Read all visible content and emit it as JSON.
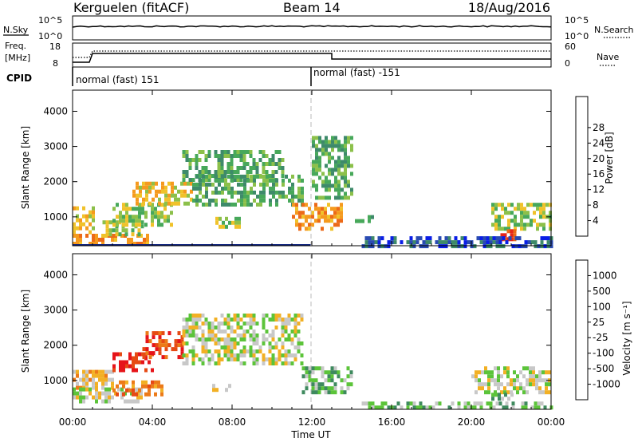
{
  "header": {
    "station": "Kerguelen (fitACF)",
    "beam": "Beam 14",
    "date": "18/Aug/2016"
  },
  "nsky_panel": {
    "left_label": "N.Sky",
    "right_label": "N.Search",
    "ticks": [
      "10^5",
      "10^0"
    ],
    "right_ticks": [
      "10^5",
      "10^0"
    ]
  },
  "freq_panel": {
    "left_label_line1": "Freq.",
    "left_label_line2": "[MHz]",
    "left_ticks": [
      "18",
      "8"
    ],
    "right_label": "Nave",
    "right_ticks": [
      "60",
      "0"
    ]
  },
  "cpid": {
    "label": "CPID",
    "segments": [
      {
        "start_hour": 0,
        "end_hour": 12,
        "text": "normal (fast) 151"
      },
      {
        "start_hour": 12,
        "end_hour": 24,
        "text": "normal (fast) -151"
      }
    ]
  },
  "x_axis": {
    "label": "Time UT",
    "range_hours": [
      0,
      24
    ],
    "ticks": [
      {
        "hour": 0,
        "text": "00:00"
      },
      {
        "hour": 4,
        "text": "04:00"
      },
      {
        "hour": 8,
        "text": "08:00"
      },
      {
        "hour": 12,
        "text": "12:00"
      },
      {
        "hour": 16,
        "text": "16:00"
      },
      {
        "hour": 20,
        "text": "20:00"
      },
      {
        "hour": 24,
        "text": "00:00"
      }
    ]
  },
  "chart_data": [
    {
      "type": "heatmap",
      "title": "",
      "ylabel": "Slant Range [km]",
      "ylim": [
        180,
        4600
      ],
      "yticks": [
        1000,
        2000,
        3000,
        4000
      ],
      "colorbar": {
        "label": "Power [dB]",
        "range": [
          0,
          30
        ],
        "ticks": [
          "4",
          "8",
          "12",
          "16",
          "20",
          "24",
          "28"
        ],
        "colors": [
          "#0a1ee6",
          "#2a4bb2",
          "#3e8a6a",
          "#47a85a",
          "#8cc04a",
          "#f0c22a",
          "#f59a1e",
          "#ec6a18",
          "#e6261a"
        ]
      },
      "regions": [
        {
          "t0": 0.0,
          "t1": 1.0,
          "r0": 600,
          "r1": 1300,
          "level": 5
        },
        {
          "t0": 0.0,
          "t1": 4.0,
          "r0": 280,
          "r1": 520,
          "level": 6
        },
        {
          "t0": 1.5,
          "t1": 3.5,
          "r0": 500,
          "r1": 900,
          "level": 4
        },
        {
          "t0": 2.0,
          "t1": 5.0,
          "r0": 800,
          "r1": 1400,
          "level": 4
        },
        {
          "t0": 3.0,
          "t1": 6.0,
          "r0": 1400,
          "r1": 2000,
          "level": 5
        },
        {
          "t0": 5.5,
          "t1": 10.5,
          "r0": 2000,
          "r1": 2900,
          "level": 3
        },
        {
          "t0": 6.0,
          "t1": 11.5,
          "r0": 1300,
          "r1": 2200,
          "level": 3
        },
        {
          "t0": 7.0,
          "t1": 8.5,
          "r0": 700,
          "r1": 1000,
          "level": 4
        },
        {
          "t0": 11.0,
          "t1": 13.5,
          "r0": 700,
          "r1": 1400,
          "level": 6
        },
        {
          "t0": 12.0,
          "t1": 14.0,
          "r0": 1500,
          "r1": 3300,
          "level": 3
        },
        {
          "t0": 14.0,
          "t1": 15.0,
          "r0": 900,
          "r1": 1050,
          "level": 2
        },
        {
          "t0": 21.0,
          "t1": 24.0,
          "r0": 700,
          "r1": 1400,
          "level": 4
        },
        {
          "t0": 21.3,
          "t1": 22.2,
          "r0": 400,
          "r1": 650,
          "level": 8
        },
        {
          "t0": 14.5,
          "t1": 24.0,
          "r0": 200,
          "r1": 450,
          "level": 1
        }
      ]
    },
    {
      "type": "heatmap",
      "title": "",
      "ylabel": "Slant Range [km]",
      "ylim": [
        180,
        4600
      ],
      "yticks": [
        1000,
        2000,
        3000,
        4000
      ],
      "colorbar": {
        "label": "Velocity [m s⁻¹]",
        "range": [
          -1000,
          1000
        ],
        "ticks": [
          "1000",
          "500",
          "100",
          "25",
          "-25",
          "-100",
          "-500",
          "-1000"
        ],
        "colors": [
          "#1e32c8",
          "#3a66b8",
          "#3e8a5e",
          "#5cc43a",
          "#c8c8c8",
          "#f2b024",
          "#ec7a18",
          "#e64a14",
          "#e6141a"
        ]
      },
      "regions": [
        {
          "t0": 0.0,
          "t1": 2.0,
          "r0": 800,
          "r1": 1300,
          "level": 5
        },
        {
          "t0": 0.0,
          "t1": 3.5,
          "r0": 450,
          "r1": 800,
          "level": 4
        },
        {
          "t0": 2.0,
          "t1": 4.0,
          "r0": 1300,
          "r1": 1800,
          "level": 8
        },
        {
          "t0": 3.5,
          "t1": 5.5,
          "r0": 1700,
          "r1": 2400,
          "level": 7
        },
        {
          "t0": 2.0,
          "t1": 4.5,
          "r0": 600,
          "r1": 1000,
          "level": 6
        },
        {
          "t0": 5.5,
          "t1": 11.5,
          "r0": 1500,
          "r1": 2900,
          "level": 4
        },
        {
          "t0": 7.0,
          "t1": 8.0,
          "r0": 700,
          "r1": 900,
          "level": 4
        },
        {
          "t0": 11.5,
          "t1": 14.0,
          "r0": 700,
          "r1": 1400,
          "level": 3
        },
        {
          "t0": 20.0,
          "t1": 24.0,
          "r0": 700,
          "r1": 1400,
          "level": 4
        },
        {
          "t0": 21.0,
          "t1": 22.0,
          "r0": 500,
          "r1": 650,
          "level": 3
        },
        {
          "t0": 14.5,
          "t1": 24.0,
          "r0": 200,
          "r1": 400,
          "level": 3
        }
      ]
    }
  ]
}
